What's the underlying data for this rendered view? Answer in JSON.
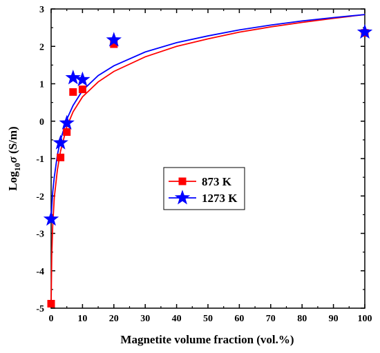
{
  "chart_data": {
    "type": "scatter",
    "title": "",
    "xlabel": "Magnetite volume fraction (vol.%)",
    "ylabel_parts": {
      "prefix": "Log",
      "subscript": "10",
      "symbol": "σ",
      "unit": " (S/m)"
    },
    "xlim": [
      0,
      100
    ],
    "ylim": [
      -5,
      3
    ],
    "x_ticks": [
      0,
      10,
      20,
      30,
      40,
      50,
      60,
      70,
      80,
      90,
      100
    ],
    "y_ticks": [
      -5,
      -4,
      -3,
      -2,
      -1,
      0,
      1,
      2,
      3
    ],
    "grid": false,
    "legend_position": "center",
    "series": [
      {
        "name": "873 K",
        "marker": "square",
        "color": "#ff0000",
        "points": [
          {
            "x": 0,
            "y": -4.88
          },
          {
            "x": 3,
            "y": -0.97
          },
          {
            "x": 5,
            "y": -0.29
          },
          {
            "x": 7,
            "y": 0.78
          },
          {
            "x": 10,
            "y": 0.85
          },
          {
            "x": 20,
            "y": 2.06
          },
          {
            "x": 100,
            "y": 2.36
          }
        ],
        "fit_curve": [
          {
            "x": 0,
            "y": -4.88
          },
          {
            "x": 0.2,
            "y": -3.6
          },
          {
            "x": 0.5,
            "y": -2.8
          },
          {
            "x": 1,
            "y": -2.05
          },
          {
            "x": 2,
            "y": -1.3
          },
          {
            "x": 3,
            "y": -0.8
          },
          {
            "x": 5,
            "y": -0.15
          },
          {
            "x": 7,
            "y": 0.25
          },
          {
            "x": 10,
            "y": 0.65
          },
          {
            "x": 15,
            "y": 1.05
          },
          {
            "x": 20,
            "y": 1.33
          },
          {
            "x": 30,
            "y": 1.72
          },
          {
            "x": 40,
            "y": 2.0
          },
          {
            "x": 50,
            "y": 2.2
          },
          {
            "x": 60,
            "y": 2.38
          },
          {
            "x": 70,
            "y": 2.52
          },
          {
            "x": 80,
            "y": 2.64
          },
          {
            "x": 90,
            "y": 2.75
          },
          {
            "x": 100,
            "y": 2.85
          }
        ]
      },
      {
        "name": "1273 K",
        "marker": "star",
        "color": "#0000ff",
        "points": [
          {
            "x": 0,
            "y": -2.62
          },
          {
            "x": 3,
            "y": -0.58
          },
          {
            "x": 5,
            "y": -0.05
          },
          {
            "x": 7,
            "y": 1.16
          },
          {
            "x": 10,
            "y": 1.11
          },
          {
            "x": 20,
            "y": 2.17
          },
          {
            "x": 100,
            "y": 2.38
          }
        ],
        "fit_curve": [
          {
            "x": 0,
            "y": -2.62
          },
          {
            "x": 0.2,
            "y": -2.3
          },
          {
            "x": 0.5,
            "y": -1.9
          },
          {
            "x": 1,
            "y": -1.5
          },
          {
            "x": 2,
            "y": -0.9
          },
          {
            "x": 3,
            "y": -0.5
          },
          {
            "x": 5,
            "y": 0.05
          },
          {
            "x": 7,
            "y": 0.42
          },
          {
            "x": 10,
            "y": 0.82
          },
          {
            "x": 15,
            "y": 1.22
          },
          {
            "x": 20,
            "y": 1.48
          },
          {
            "x": 30,
            "y": 1.85
          },
          {
            "x": 40,
            "y": 2.1
          },
          {
            "x": 50,
            "y": 2.28
          },
          {
            "x": 60,
            "y": 2.44
          },
          {
            "x": 70,
            "y": 2.57
          },
          {
            "x": 80,
            "y": 2.68
          },
          {
            "x": 90,
            "y": 2.77
          },
          {
            "x": 100,
            "y": 2.85
          }
        ]
      }
    ]
  }
}
